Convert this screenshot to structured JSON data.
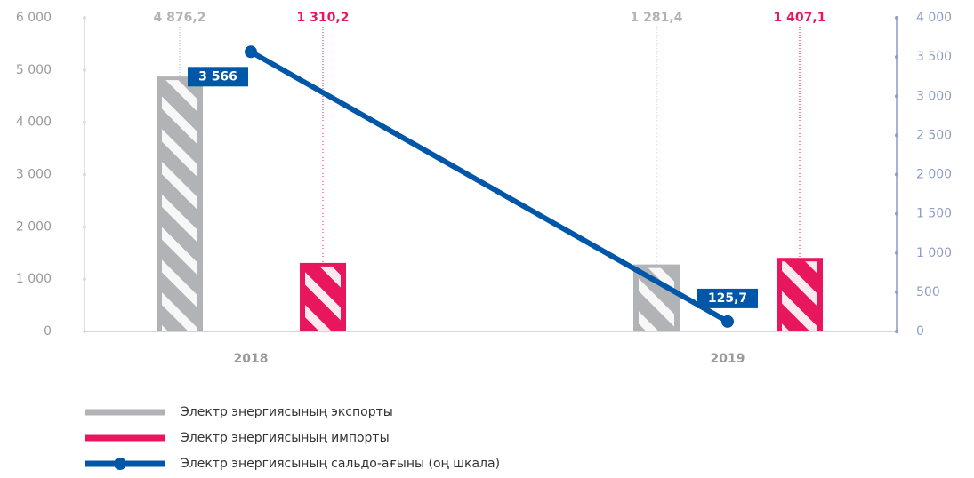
{
  "chart_data": {
    "type": "bar",
    "categories": [
      "2018",
      "2019"
    ],
    "series": [
      {
        "name": "Электр энергиясының экспорты",
        "color": "#b1b3b6",
        "values": [
          4876.2,
          1281.4
        ],
        "value_labels": [
          "4 876,2",
          "1 281,4"
        ]
      },
      {
        "name": "Электр энергиясының импорты",
        "color": "#e8175d",
        "values": [
          1310.2,
          1407.1
        ],
        "value_labels": [
          "1 310,2",
          "1 407,1"
        ]
      },
      {
        "name": "Электр энергиясының сальдо-ағыны (оң шкала)",
        "type": "line",
        "axis": "y2",
        "color": "#0057a8",
        "values": [
          3566,
          125.7
        ],
        "value_labels": [
          "3 566",
          "125,7"
        ]
      }
    ],
    "ylim": [
      0,
      6000
    ],
    "yticks": [
      0,
      {
        "value": 1000,
        "label": "1 000"
      },
      {
        "value": 2000,
        "label": "2 000"
      },
      {
        "value": 3000,
        "label": "3 000"
      },
      {
        "value": 4000,
        "label": "4 000"
      },
      {
        "value": 5000,
        "label": "5 000"
      },
      {
        "value": 6000,
        "label": "6 000"
      }
    ],
    "y2lim": [
      0,
      4000
    ],
    "y2ticks": [
      0,
      500,
      {
        "value": 1000,
        "label": "1 000"
      },
      {
        "value": 1500,
        "label": "1 500"
      },
      {
        "value": 2000,
        "label": "2 000"
      },
      {
        "value": 2500,
        "label": "2 500"
      },
      {
        "value": 3000,
        "label": "3 000"
      },
      {
        "value": 3500,
        "label": "3 500"
      },
      {
        "value": 4000,
        "label": "4 000"
      }
    ],
    "legend": "bottom"
  }
}
